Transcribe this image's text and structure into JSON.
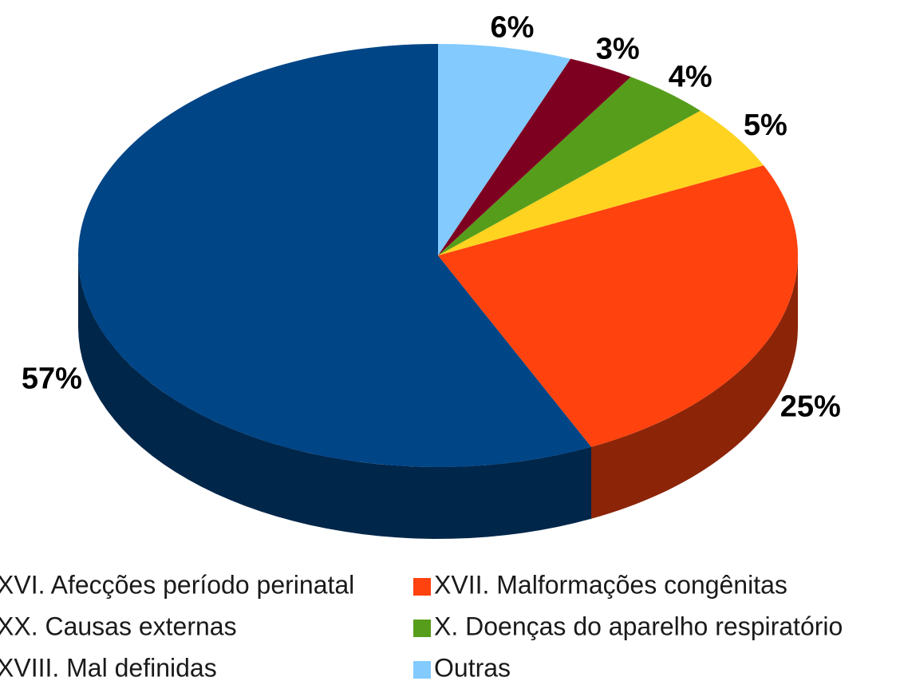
{
  "chart_data": {
    "type": "pie",
    "categories": [
      "XVI. Afecções período perinatal",
      "XVII. Malformações congênitas",
      "XX. Causas externas",
      "X. Doenças do aparelho respiratório",
      "XVIII. Mal definidas",
      "Outras"
    ],
    "values": [
      57,
      25,
      5,
      4,
      3,
      6
    ],
    "value_labels": [
      "57%",
      "25%",
      "5%",
      "4%",
      "3%",
      "6%"
    ],
    "colors": [
      "#004586",
      "#ff420e",
      "#ffd320",
      "#579d1c",
      "#7e0021",
      "#83caff"
    ],
    "legend": "bottom"
  }
}
